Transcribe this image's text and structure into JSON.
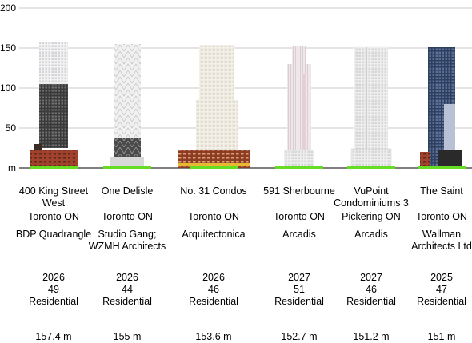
{
  "chart_data": {
    "type": "bar",
    "ylim": [
      0,
      200
    ],
    "yticks": [
      "m",
      "50",
      "100",
      "150",
      "200"
    ],
    "categories": [
      "400 King Street West",
      "One Delisle",
      "No. 31 Condos",
      "591 Sherbourne",
      "VuPoint Condominiums 3",
      "The Saint"
    ],
    "values": [
      157.4,
      155,
      153.6,
      152.7,
      151.2,
      151
    ]
  },
  "colors": {
    "ground": "#66dd22",
    "gridline": "#c8c8c8",
    "podium_brick": "#a3422c",
    "glass_dark": "#2f3f5f",
    "glass_light": "#e8e8ee"
  },
  "buildings": [
    {
      "name": "400 King Street West",
      "city": "Toronto ON",
      "architect": "BDP Quadrangle",
      "year": "2026",
      "floors": "49",
      "use": "Residential",
      "height": "157.4 m"
    },
    {
      "name": "One Delisle",
      "city": "Toronto ON",
      "architect": "Studio Gang; WZMH Architects",
      "year": "2026",
      "floors": "44",
      "use": "Residential",
      "height": "155 m"
    },
    {
      "name": "No. 31 Condos",
      "city": "Toronto ON",
      "architect": "Arquitectonica",
      "year": "2026",
      "floors": "46",
      "use": "Residential",
      "height": "153.6 m"
    },
    {
      "name": "591 Sherbourne",
      "city": "Toronto ON",
      "architect": "Arcadis",
      "year": "2027",
      "floors": "51",
      "use": "Residential",
      "height": "152.7 m"
    },
    {
      "name": "VuPoint Condominiums 3",
      "city": "Pickering ON",
      "architect": "Arcadis",
      "year": "2027",
      "floors": "46",
      "use": "Residential",
      "height": "151.2 m"
    },
    {
      "name": "The Saint",
      "city": "Toronto ON",
      "architect": "Wallman Architects Ltd",
      "year": "2025",
      "floors": "47",
      "use": "Residential",
      "height": "151 m"
    }
  ]
}
